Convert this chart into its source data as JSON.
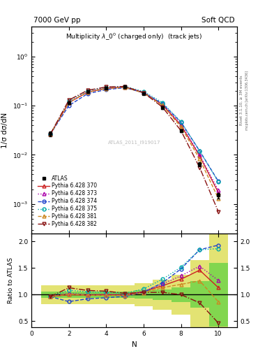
{
  "title_left": "7000 GeV pp",
  "title_right": "Soft QCD",
  "plot_title": "Multiplicity $\\lambda\\_0^0$ (charged only)  (track jets)",
  "xlabel": "N",
  "ylabel_main": "1/σ dσ/dN",
  "ylabel_ratio": "Ratio to ATLAS",
  "rivet_label": "Rivet 3.1.10, ≥ 3M events",
  "mcplots_label": "mcplots.cern.ch [arXiv:1306.3436]",
  "atlas_ref": "ATLAS_2011_I919017",
  "x_vals": [
    1,
    2,
    3,
    4,
    5,
    6,
    7,
    8,
    9,
    10
  ],
  "atlas_y": [
    0.027,
    0.115,
    0.19,
    0.225,
    0.24,
    0.175,
    0.09,
    0.031,
    0.0065,
    0.0015
  ],
  "atlas_yerr": [
    0.003,
    0.007,
    0.009,
    0.01,
    0.01,
    0.008,
    0.005,
    0.002,
    0.0006,
    0.0002
  ],
  "p370_y": [
    0.026,
    0.115,
    0.188,
    0.225,
    0.238,
    0.185,
    0.105,
    0.04,
    0.0095,
    0.0017
  ],
  "p373_y": [
    0.026,
    0.118,
    0.19,
    0.226,
    0.239,
    0.186,
    0.108,
    0.042,
    0.01,
    0.0019
  ],
  "p374_y": [
    0.026,
    0.1,
    0.175,
    0.212,
    0.232,
    0.183,
    0.11,
    0.046,
    0.012,
    0.0029
  ],
  "p375_y": [
    0.026,
    0.125,
    0.2,
    0.235,
    0.246,
    0.194,
    0.116,
    0.047,
    0.012,
    0.0028
  ],
  "p381_y": [
    0.026,
    0.116,
    0.188,
    0.222,
    0.236,
    0.181,
    0.102,
    0.037,
    0.0082,
    0.0013
  ],
  "p382_y": [
    0.026,
    0.13,
    0.205,
    0.24,
    0.246,
    0.182,
    0.094,
    0.031,
    0.0055,
    0.0007
  ],
  "colors": {
    "atlas": "#000000",
    "p370": "#cc2222",
    "p373": "#aa00aa",
    "p374": "#2244cc",
    "p375": "#00aaaa",
    "p381": "#cc8822",
    "p382": "#881111"
  },
  "markers": {
    "p370": "^",
    "p373": "^",
    "p374": "o",
    "p375": "o",
    "p381": "^",
    "p382": "v"
  },
  "linestyles": {
    "p370": "-",
    "p373": ":",
    "p374": "--",
    "p375": ":",
    "p381": "--",
    "p382": "-."
  },
  "labels": {
    "p370": "Pythia 6.428 370",
    "p373": "Pythia 6.428 373",
    "p374": "Pythia 6.428 374",
    "p375": "Pythia 6.428 375",
    "p381": "Pythia 6.428 381",
    "p382": "Pythia 6.428 382"
  },
  "ylim_main": [
    0.00025,
    4.0
  ],
  "xlim": [
    0,
    11
  ],
  "ylim_ratio": [
    0.38,
    2.15
  ],
  "yticks_ratio": [
    0.5,
    1.0,
    1.5,
    2.0
  ],
  "band_x": [
    1,
    2,
    3,
    4,
    5,
    6,
    7,
    8,
    9,
    10
  ],
  "band_inner": [
    0.06,
    0.06,
    0.06,
    0.06,
    0.06,
    0.08,
    0.1,
    0.14,
    0.25,
    0.6
  ],
  "band_outer": [
    0.18,
    0.18,
    0.18,
    0.18,
    0.18,
    0.22,
    0.28,
    0.38,
    0.65,
    1.2
  ],
  "band_inner_color": "#33cc33",
  "band_outer_color": "#cccc00",
  "band_inner_alpha": 0.55,
  "band_outer_alpha": 0.55
}
